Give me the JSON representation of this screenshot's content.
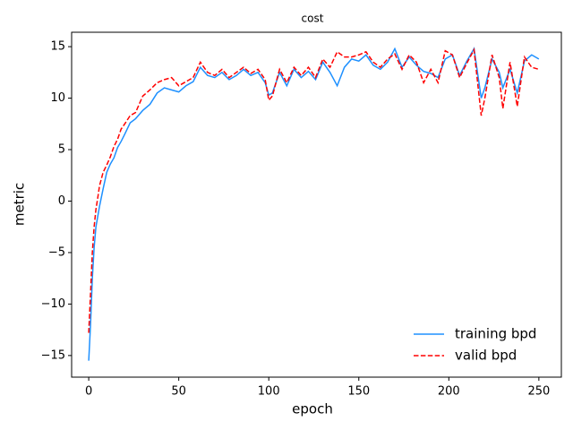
{
  "chart_data": {
    "type": "line",
    "title": "cost",
    "x_label": "epoch",
    "y_label": "metric",
    "x": [
      0,
      1,
      2,
      3,
      4,
      5,
      6,
      8,
      10,
      12,
      14,
      16,
      18,
      20,
      23,
      26,
      30,
      34,
      38,
      42,
      46,
      50,
      54,
      58,
      62,
      66,
      70,
      74,
      78,
      82,
      86,
      90,
      94,
      98,
      100,
      102,
      106,
      110,
      114,
      118,
      122,
      126,
      130,
      134,
      138,
      142,
      146,
      150,
      154,
      158,
      162,
      166,
      170,
      174,
      178,
      182,
      186,
      190,
      194,
      198,
      202,
      206,
      210,
      214,
      218,
      220,
      224,
      228,
      230,
      234,
      238,
      242,
      246,
      250
    ],
    "series": [
      {
        "name": "training bpd",
        "color": "#1e90ff",
        "dash": false,
        "values": [
          -15.5,
          -12,
          -7.5,
          -4.5,
          -2.5,
          -1.5,
          -0.5,
          1.2,
          2.8,
          3.6,
          4.2,
          5.2,
          5.8,
          6.5,
          7.6,
          8,
          8.8,
          9.4,
          10.5,
          11,
          10.8,
          10.6,
          11.2,
          11.6,
          13,
          12.2,
          12,
          12.5,
          11.8,
          12.2,
          12.8,
          12.2,
          12.5,
          11.5,
          10.3,
          10.5,
          12.5,
          11.2,
          12.8,
          12,
          12.6,
          11.8,
          13.5,
          12.5,
          11.2,
          13,
          13.8,
          13.6,
          14.2,
          13.2,
          12.8,
          13.5,
          14.8,
          13,
          14,
          13.2,
          12.6,
          12.4,
          12,
          13.8,
          14.2,
          12.2,
          13.6,
          14.8,
          10,
          11,
          13.8,
          12.5,
          11,
          12.8,
          10.5,
          13.6,
          14.2,
          13.8
        ]
      },
      {
        "name": "valid bpd",
        "color": "#ff0000",
        "dash": true,
        "values": [
          -12.8,
          -9,
          -5,
          -2.5,
          -0.8,
          0.3,
          1.5,
          2.8,
          3.5,
          4.3,
          5.3,
          6,
          7,
          7.5,
          8.3,
          8.6,
          10.2,
          10.8,
          11.5,
          11.8,
          12,
          11.2,
          11.6,
          12,
          13.5,
          12.5,
          12.2,
          12.8,
          12,
          12.5,
          13,
          12.4,
          12.8,
          11.8,
          9.8,
          10.2,
          12.8,
          11.5,
          13,
          12.2,
          13,
          12,
          13.8,
          13,
          14.5,
          14,
          14,
          14.2,
          14.5,
          13.5,
          13,
          13.8,
          14.3,
          12.8,
          14.2,
          13.5,
          11.5,
          12.8,
          11.5,
          14.6,
          14.2,
          12,
          13.4,
          14.7,
          8.3,
          10,
          14.2,
          12,
          9,
          13.5,
          9.2,
          14,
          13,
          12.8
        ]
      }
    ],
    "xlim": [
      -9.5,
      262.5
    ],
    "ylim": [
      -17.1,
      16.4
    ],
    "xticks": [
      0,
      50,
      100,
      150,
      200,
      250
    ],
    "yticks": [
      {
        "value": -15,
        "label": "−15"
      },
      {
        "value": -10,
        "label": "−10"
      },
      {
        "value": -5,
        "label": "−5"
      },
      0,
      5,
      10,
      15
    ],
    "legend": "lower right"
  }
}
